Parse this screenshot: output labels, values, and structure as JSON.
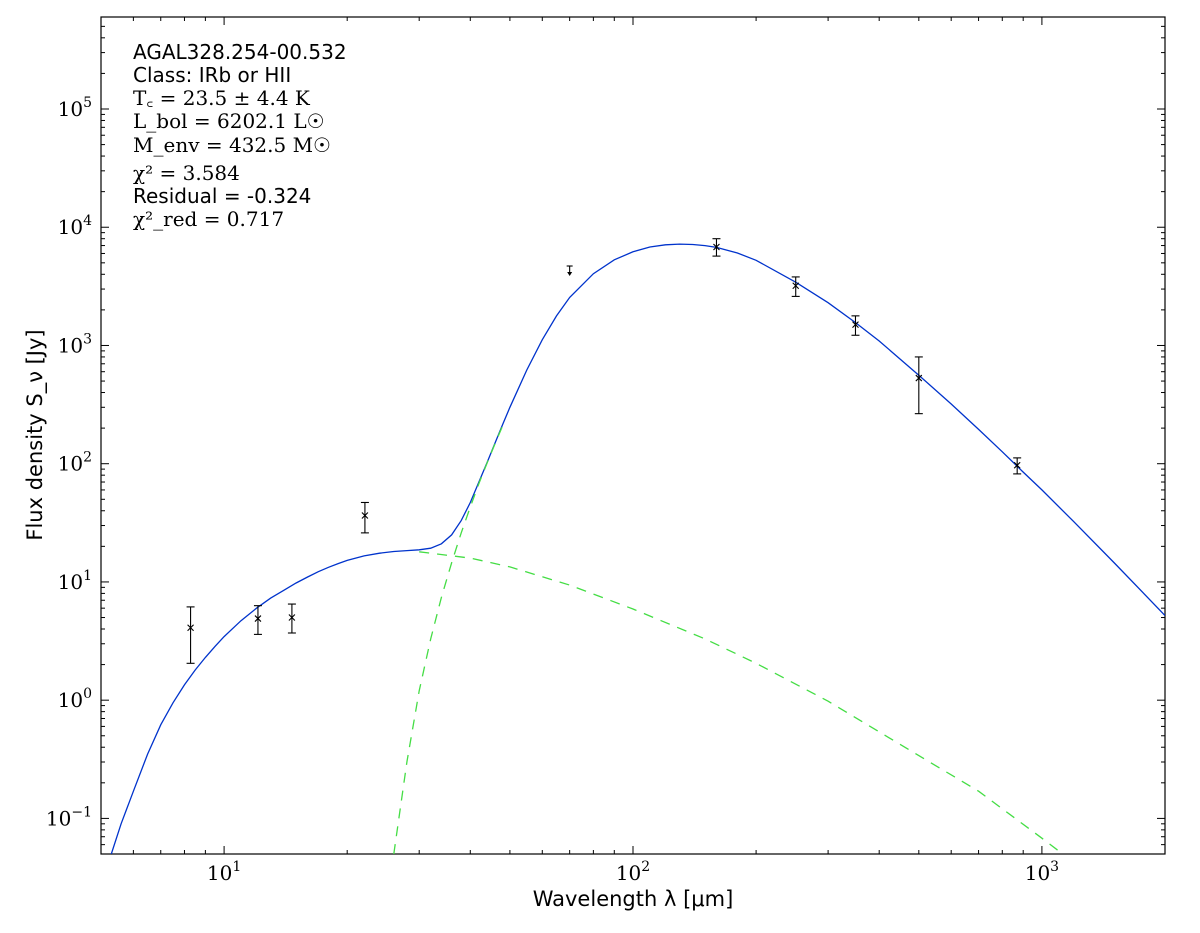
{
  "chart_data": {
    "type": "scatter",
    "xscale": "log",
    "yscale": "log",
    "xlim": [
      5.0,
      2000
    ],
    "ylim": [
      0.05,
      600000
    ],
    "xlabel": "Wavelength λ [μm]",
    "ylabel": "Flux density S_ν [Jy]",
    "xticks": [
      {
        "value": 10,
        "mantissa": "10",
        "exp": "1"
      },
      {
        "value": 100,
        "mantissa": "10",
        "exp": "2"
      },
      {
        "value": 1000,
        "mantissa": "10",
        "exp": "3"
      }
    ],
    "yticks": [
      {
        "value": 0.1,
        "mantissa": "10",
        "exp": "−1"
      },
      {
        "value": 1,
        "mantissa": "10",
        "exp": "0"
      },
      {
        "value": 10,
        "mantissa": "10",
        "exp": "1"
      },
      {
        "value": 100,
        "mantissa": "10",
        "exp": "2"
      },
      {
        "value": 1000,
        "mantissa": "10",
        "exp": "3"
      },
      {
        "value": 10000,
        "mantissa": "10",
        "exp": "4"
      },
      {
        "value": 100000,
        "mantissa": "10",
        "exp": "5"
      }
    ],
    "annotations": {
      "source": "AGAL328.254-00.532",
      "class": "Class: IRb or HII",
      "tc": "T꜀ = 23.5 ± 4.4 K",
      "lbol": "L_bol = 6202.1 L☉",
      "menv": "M_env = 432.5 M☉",
      "chi2": "χ² = 3.584",
      "residual": "Residual = -0.324",
      "chi2red": "χ²_red = 0.717"
    },
    "observations": [
      {
        "x": 8.28,
        "y": 4.1,
        "ylo": 2.05,
        "yhi": 6.15
      },
      {
        "x": 12.1,
        "y": 4.9,
        "ylo": 3.6,
        "yhi": 6.3
      },
      {
        "x": 14.65,
        "y": 5.0,
        "ylo": 3.7,
        "yhi": 6.5
      },
      {
        "x": 22.1,
        "y": 36.5,
        "ylo": 26.0,
        "yhi": 47.0
      },
      {
        "x": 160,
        "y": 6800,
        "ylo": 5700,
        "yhi": 8000
      },
      {
        "x": 250,
        "y": 3200,
        "ylo": 2600,
        "yhi": 3800
      },
      {
        "x": 350,
        "y": 1500,
        "ylo": 1220,
        "yhi": 1780
      },
      {
        "x": 500,
        "y": 530,
        "ylo": 265,
        "yhi": 800
      },
      {
        "x": 870,
        "y": 97,
        "ylo": 82,
        "yhi": 112
      }
    ],
    "upper_limits": [
      {
        "x": 70,
        "y": 4700
      }
    ],
    "series": [
      {
        "color": "#0033cc",
        "style": "solid",
        "points": [
          [
            5.3,
            0.05
          ],
          [
            5.6,
            0.09
          ],
          [
            6.0,
            0.17
          ],
          [
            6.5,
            0.35
          ],
          [
            7.0,
            0.62
          ],
          [
            7.5,
            0.95
          ],
          [
            8.0,
            1.35
          ],
          [
            8.5,
            1.8
          ],
          [
            9.0,
            2.3
          ],
          [
            9.5,
            2.85
          ],
          [
            10,
            3.45
          ],
          [
            11,
            4.7
          ],
          [
            12,
            6.0
          ],
          [
            13,
            7.3
          ],
          [
            14,
            8.5
          ],
          [
            15,
            9.8
          ],
          [
            16,
            11.0
          ],
          [
            17,
            12.2
          ],
          [
            18,
            13.3
          ],
          [
            19,
            14.3
          ],
          [
            20,
            15.2
          ],
          [
            22,
            16.6
          ],
          [
            24,
            17.5
          ],
          [
            26,
            18.1
          ],
          [
            28,
            18.4
          ],
          [
            30,
            18.7
          ],
          [
            32,
            19.3
          ],
          [
            34,
            21
          ],
          [
            36,
            25
          ],
          [
            38,
            33
          ],
          [
            40,
            47
          ],
          [
            42,
            70
          ],
          [
            44,
            103
          ],
          [
            46,
            150
          ],
          [
            48,
            215
          ],
          [
            50,
            300
          ],
          [
            55,
            620
          ],
          [
            60,
            1120
          ],
          [
            65,
            1780
          ],
          [
            70,
            2550
          ],
          [
            80,
            4050
          ],
          [
            90,
            5300
          ],
          [
            100,
            6200
          ],
          [
            110,
            6800
          ],
          [
            120,
            7100
          ],
          [
            130,
            7200
          ],
          [
            140,
            7150
          ],
          [
            150,
            7000
          ],
          [
            160,
            6750
          ],
          [
            180,
            6050
          ],
          [
            200,
            5250
          ],
          [
            250,
            3430
          ],
          [
            300,
            2300
          ],
          [
            350,
            1560
          ],
          [
            400,
            1090
          ],
          [
            500,
            560
          ],
          [
            600,
            320
          ],
          [
            700,
            195
          ],
          [
            800,
            126
          ],
          [
            900,
            85
          ],
          [
            1000,
            60
          ],
          [
            1200,
            32
          ],
          [
            1500,
            14.6
          ],
          [
            2000,
            5.2
          ]
        ]
      },
      {
        "color": "#44dd44",
        "style": "dashed",
        "points": [
          [
            26,
            0.05
          ],
          [
            28,
            0.3
          ],
          [
            30,
            1.2
          ],
          [
            32,
            3.3
          ],
          [
            34,
            7.4
          ],
          [
            36,
            14.5
          ],
          [
            38,
            26
          ],
          [
            40,
            43
          ],
          [
            42,
            68
          ],
          [
            44,
            102
          ],
          [
            46,
            148
          ],
          [
            48,
            210
          ]
        ]
      },
      {
        "color": "#44dd44",
        "style": "dashed",
        "points": [
          [
            30,
            18.0
          ],
          [
            40,
            15.9
          ],
          [
            50,
            13.4
          ],
          [
            70,
            9.4
          ],
          [
            100,
            5.9
          ],
          [
            150,
            3.3
          ],
          [
            200,
            2.05
          ],
          [
            300,
            0.98
          ],
          [
            500,
            0.34
          ],
          [
            700,
            0.17
          ],
          [
            1000,
            0.068
          ],
          [
            1100,
            0.053
          ]
        ]
      }
    ]
  }
}
